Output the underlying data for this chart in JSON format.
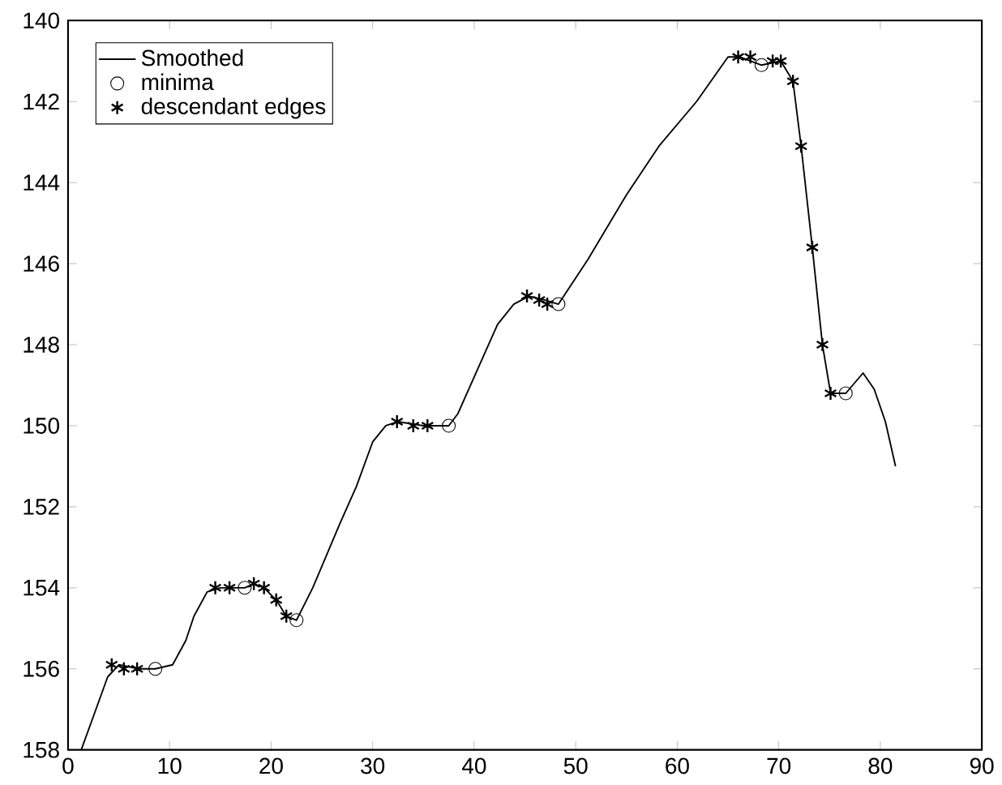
{
  "chart_data": {
    "type": "line",
    "xlim": [
      0,
      90
    ],
    "xticks": [
      0,
      10,
      20,
      30,
      40,
      50,
      60,
      70,
      80,
      90
    ],
    "ylim": [
      158,
      140
    ],
    "yticks": [
      140,
      142,
      144,
      146,
      148,
      150,
      152,
      154,
      156,
      158
    ],
    "grid": false,
    "legend": "top left",
    "series": [
      {
        "name": "Smoothed",
        "marker": "none",
        "line_style": "solid",
        "color": "#000000",
        "x": [
          1.3,
          2.6,
          3.9,
          5,
          7,
          8.6,
          10.3,
          11.6,
          12.4,
          13.7,
          15,
          17.4,
          18.3,
          19.3,
          20.5,
          21.5,
          22.5,
          24.1,
          26.8,
          28.4,
          30,
          31.3,
          32.5,
          35,
          37.5,
          38.4,
          40.7,
          42.3,
          43.9,
          45.4,
          47,
          48.3,
          51.2,
          55,
          58.2,
          61.9,
          65,
          66.2,
          68.3,
          70.2,
          71.4,
          72.2,
          73.3,
          74.3,
          75.1,
          76.6,
          78.3,
          79.4,
          80.5,
          81.5
        ],
        "values": [
          158.0,
          157.1,
          156.2,
          155.9,
          156.0,
          156.0,
          155.9,
          155.3,
          154.7,
          154.1,
          154.0,
          154.0,
          153.9,
          154.0,
          154.3,
          154.7,
          154.8,
          154.0,
          152.4,
          151.5,
          150.4,
          150.0,
          149.9,
          150.0,
          150.0,
          149.7,
          148.4,
          147.5,
          147.0,
          146.8,
          146.9,
          147.0,
          145.9,
          144.3,
          143.1,
          142.0,
          140.9,
          140.9,
          141.1,
          141.0,
          141.5,
          143.1,
          145.6,
          148.0,
          149.2,
          149.2,
          148.7,
          149.1,
          149.9,
          151.0
        ]
      },
      {
        "name": "minima",
        "type": "scatter",
        "marker": "circle",
        "color": "#000000",
        "x": [
          8.6,
          17.4,
          22.5,
          37.5,
          48.3,
          68.3,
          76.6
        ],
        "values": [
          156.0,
          154.0,
          154.8,
          150.0,
          147.0,
          141.1,
          149.2
        ]
      },
      {
        "name": "descendant edges",
        "type": "scatter",
        "marker": "cross",
        "color": "#000000",
        "x": [
          4.3,
          5.5,
          6.8,
          14.5,
          15.9,
          18.3,
          19.3,
          20.5,
          21.5,
          32.4,
          34,
          35.4,
          45.2,
          46.4,
          47.2,
          66.0,
          67.2,
          69.4,
          70.2,
          71.4,
          72.2,
          73.3,
          74.3,
          75.1
        ],
        "values": [
          155.9,
          156.0,
          156.0,
          154.0,
          154.0,
          153.9,
          154.0,
          154.3,
          154.7,
          149.9,
          150.0,
          150.0,
          146.8,
          146.9,
          147.0,
          140.9,
          140.9,
          141.0,
          141.0,
          141.5,
          143.1,
          145.6,
          148.0,
          149.2
        ]
      }
    ]
  }
}
